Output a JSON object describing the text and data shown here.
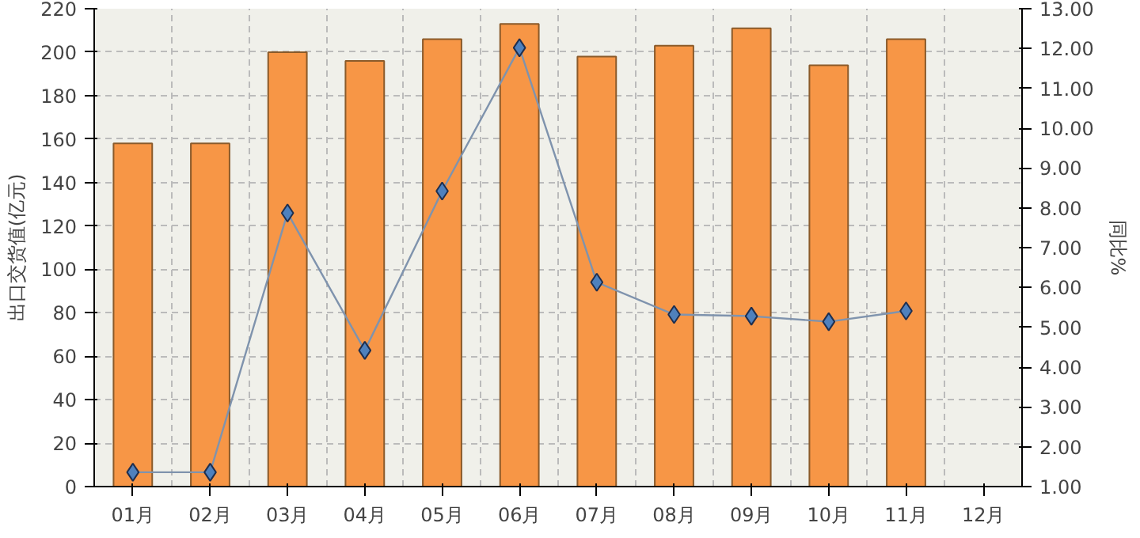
{
  "chart_data": {
    "type": "bar",
    "ylabel": "出口交货值(亿元)",
    "y2label": "同比%",
    "categories": [
      "01月",
      "02月",
      "03月",
      "04月",
      "05月",
      "06月",
      "07月",
      "08月",
      "09月",
      "10月",
      "11月",
      "12月"
    ],
    "series": [
      {
        "color": "#f79646",
        "values": [
          158,
          158,
          200,
          196,
          206,
          213,
          198,
          203,
          211,
          194,
          206,
          null
        ]
      },
      {
        "type": "line",
        "axis": "y2",
        "color": "#4f81bd",
        "marker": "diamond",
        "values": [
          1.36,
          1.36,
          7.87,
          4.42,
          8.42,
          12.02,
          6.13,
          5.32,
          5.28,
          5.14,
          5.41,
          null
        ]
      }
    ],
    "ylim": [
      0,
      220
    ],
    "yticks": [
      0,
      20,
      40,
      60,
      80,
      100,
      120,
      140,
      160,
      180,
      200,
      220
    ],
    "y2lim": [
      1,
      13
    ],
    "y2ticks": [
      {
        "value": 1,
        "label": "1.00"
      },
      {
        "value": 2,
        "label": "2.00"
      },
      {
        "value": 3,
        "label": "3.00"
      },
      {
        "value": 4,
        "label": "4.00"
      },
      {
        "value": 5,
        "label": "5.00"
      },
      {
        "value": 6,
        "label": "6.00"
      },
      {
        "value": 7,
        "label": "7.00"
      },
      {
        "value": 8,
        "label": "8.00"
      },
      {
        "value": 9,
        "label": "9.00"
      },
      {
        "value": 10,
        "label": "10.00"
      },
      {
        "value": 11,
        "label": "11.00"
      },
      {
        "value": 12,
        "label": "12.00"
      },
      {
        "value": 13,
        "label": "13.00"
      }
    ],
    "grid": true
  }
}
